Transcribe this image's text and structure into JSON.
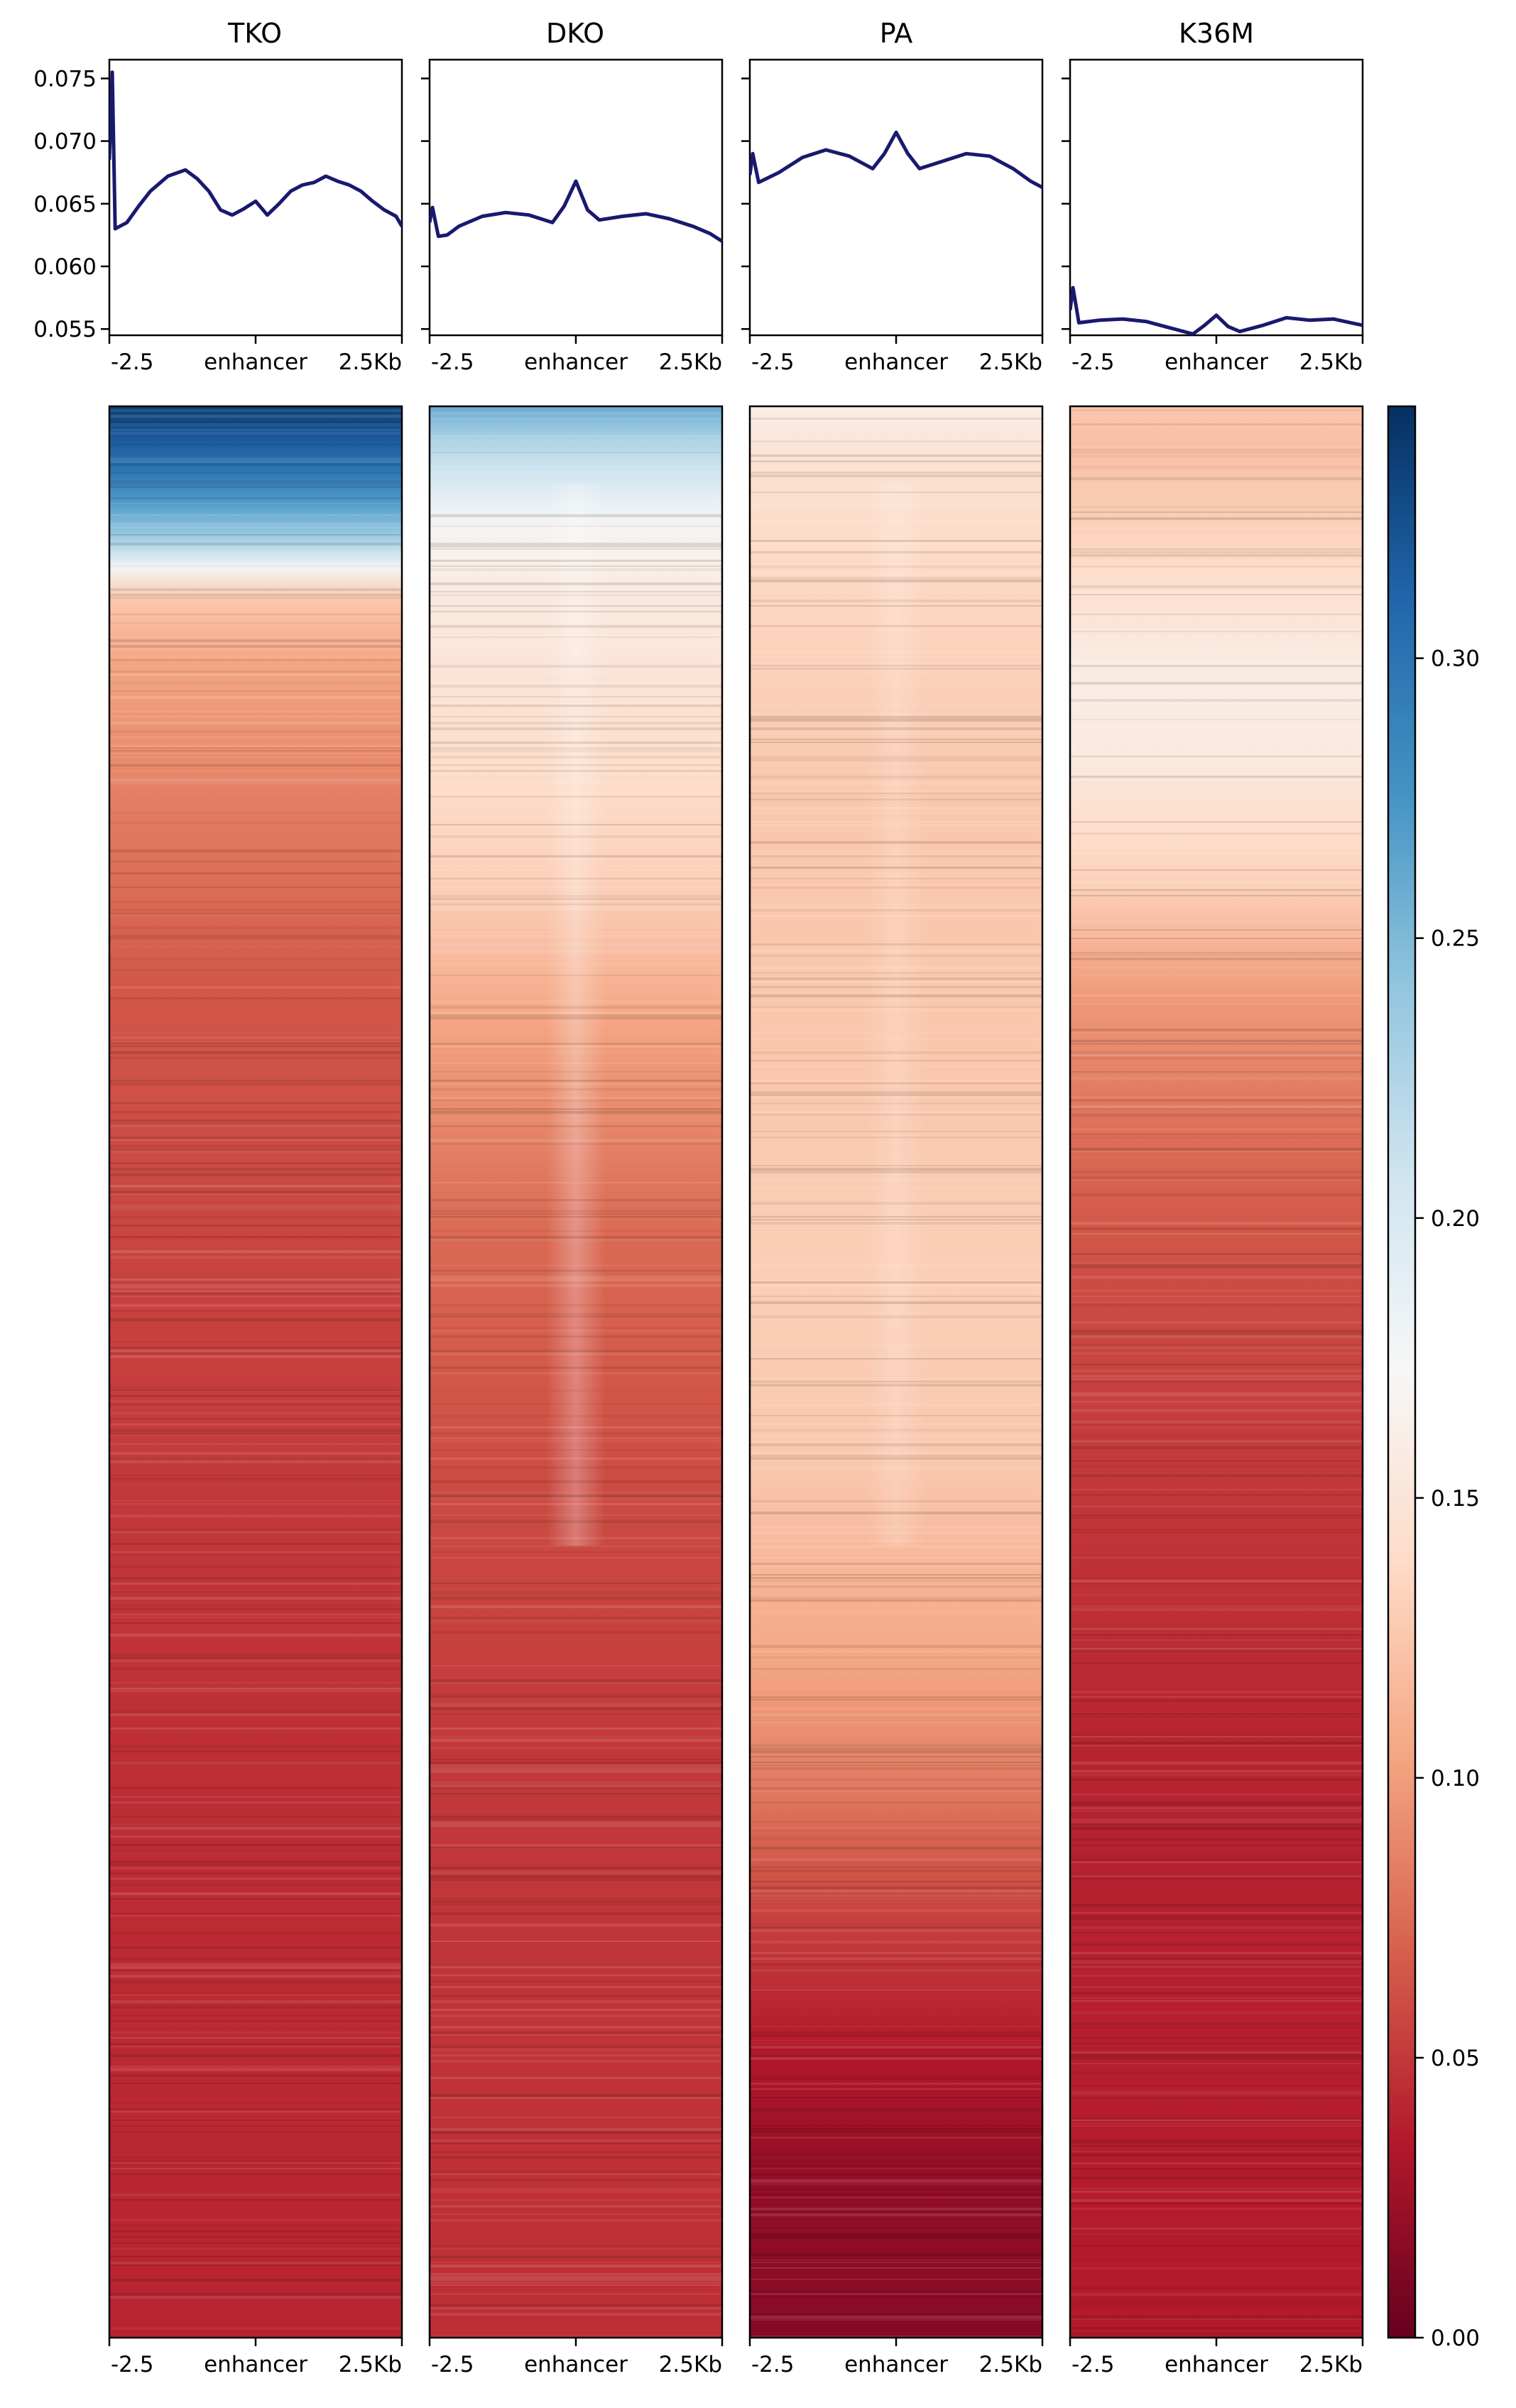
{
  "chart_data": {
    "type": "heatmap",
    "samples": [
      "TKO",
      "DKO",
      "PA",
      "K36M"
    ],
    "profile": {
      "type": "line",
      "ylim": [
        0.0545,
        0.0765
      ],
      "yticks": [
        "0.055",
        "0.060",
        "0.065",
        "0.070",
        "0.075"
      ],
      "line_color": "#191970",
      "x_tick_labels": [
        "-2.5",
        "enhancer",
        "2.5Kb"
      ],
      "x_range": [
        -2.5,
        2.5
      ],
      "series": [
        {
          "name": "TKO",
          "x": [
            -2.5,
            -2.45,
            -2.4,
            -2.2,
            -2.0,
            -1.8,
            -1.5,
            -1.2,
            -1.0,
            -0.8,
            -0.6,
            -0.4,
            -0.2,
            0.0,
            0.2,
            0.4,
            0.6,
            0.8,
            1.0,
            1.2,
            1.4,
            1.6,
            1.8,
            2.0,
            2.2,
            2.4,
            2.5
          ],
          "y": [
            0.0685,
            0.0755,
            0.063,
            0.0635,
            0.0648,
            0.066,
            0.0672,
            0.0677,
            0.067,
            0.066,
            0.0645,
            0.0641,
            0.0646,
            0.0652,
            0.0641,
            0.065,
            0.066,
            0.0665,
            0.0667,
            0.0672,
            0.0668,
            0.0665,
            0.066,
            0.0652,
            0.0645,
            0.064,
            0.0632
          ]
        },
        {
          "name": "DKO",
          "x": [
            -2.5,
            -2.45,
            -2.35,
            -2.2,
            -2.0,
            -1.6,
            -1.2,
            -0.8,
            -0.4,
            -0.2,
            0.0,
            0.2,
            0.4,
            0.8,
            1.2,
            1.6,
            2.0,
            2.3,
            2.5
          ],
          "y": [
            0.0635,
            0.0647,
            0.0624,
            0.0625,
            0.0632,
            0.064,
            0.0643,
            0.0641,
            0.0635,
            0.0648,
            0.0668,
            0.0645,
            0.0637,
            0.064,
            0.0642,
            0.0638,
            0.0632,
            0.0626,
            0.062
          ]
        },
        {
          "name": "PA",
          "x": [
            -2.5,
            -2.45,
            -2.35,
            -2.0,
            -1.6,
            -1.2,
            -0.8,
            -0.4,
            -0.2,
            0.0,
            0.2,
            0.4,
            0.8,
            1.2,
            1.6,
            2.0,
            2.3,
            2.5
          ],
          "y": [
            0.0673,
            0.069,
            0.0667,
            0.0675,
            0.0687,
            0.0693,
            0.0688,
            0.0678,
            0.069,
            0.0707,
            0.069,
            0.0678,
            0.0684,
            0.069,
            0.0688,
            0.0678,
            0.0668,
            0.0663
          ]
        },
        {
          "name": "K36M",
          "x": [
            -2.5,
            -2.45,
            -2.35,
            -2.0,
            -1.6,
            -1.2,
            -0.8,
            -0.4,
            -0.2,
            0.0,
            0.2,
            0.4,
            0.8,
            1.2,
            1.6,
            2.0,
            2.3,
            2.5
          ],
          "y": [
            0.0565,
            0.0583,
            0.0555,
            0.0557,
            0.0558,
            0.0556,
            0.0551,
            0.0546,
            0.0553,
            0.0561,
            0.0552,
            0.0548,
            0.0553,
            0.0559,
            0.0557,
            0.0558,
            0.0555,
            0.0553
          ]
        }
      ]
    },
    "heatmap": {
      "x_tick_labels": [
        "-2.5",
        "enhancer",
        "2.5Kb"
      ],
      "row_count": "not shown",
      "colorbar": {
        "vmin": 0.0,
        "vmax": 0.345,
        "ticks": [
          "0.00",
          "0.05",
          "0.10",
          "0.15",
          "0.20",
          "0.25",
          "0.30"
        ],
        "colormap": "RdBu"
      },
      "row_profiles": [
        {
          "name": "TKO",
          "pos": [
            0,
            0.015,
            0.04,
            0.07,
            0.085,
            0.1,
            0.13,
            0.2,
            0.3,
            0.45,
            0.7,
            1.0
          ],
          "val": [
            0.335,
            0.32,
            0.29,
            0.23,
            0.17,
            0.125,
            0.105,
            0.085,
            0.065,
            0.055,
            0.045,
            0.04
          ]
        },
        {
          "name": "DKO",
          "pos": [
            0,
            0.015,
            0.04,
            0.06,
            0.1,
            0.16,
            0.25,
            0.33,
            0.42,
            0.55,
            0.7,
            1.0
          ],
          "val": [
            0.26,
            0.23,
            0.2,
            0.17,
            0.155,
            0.145,
            0.13,
            0.1,
            0.075,
            0.06,
            0.05,
            0.045
          ]
        },
        {
          "name": "PA",
          "pos": [
            0,
            0.03,
            0.1,
            0.2,
            0.35,
            0.45,
            0.55,
            0.65,
            0.72,
            0.78,
            0.85,
            0.92,
            1.0
          ],
          "val": [
            0.16,
            0.145,
            0.135,
            0.125,
            0.125,
            0.13,
            0.125,
            0.105,
            0.08,
            0.055,
            0.035,
            0.02,
            0.015
          ]
        },
        {
          "name": "K36M",
          "pos": [
            0,
            0.02,
            0.06,
            0.1,
            0.14,
            0.18,
            0.25,
            0.3,
            0.38,
            0.45,
            0.55,
            0.7,
            1.0
          ],
          "val": [
            0.125,
            0.12,
            0.13,
            0.145,
            0.16,
            0.155,
            0.13,
            0.1,
            0.075,
            0.06,
            0.05,
            0.04,
            0.035
          ]
        }
      ],
      "center_enrichment": [
        0.0,
        0.015,
        0.01,
        0.0
      ]
    }
  }
}
